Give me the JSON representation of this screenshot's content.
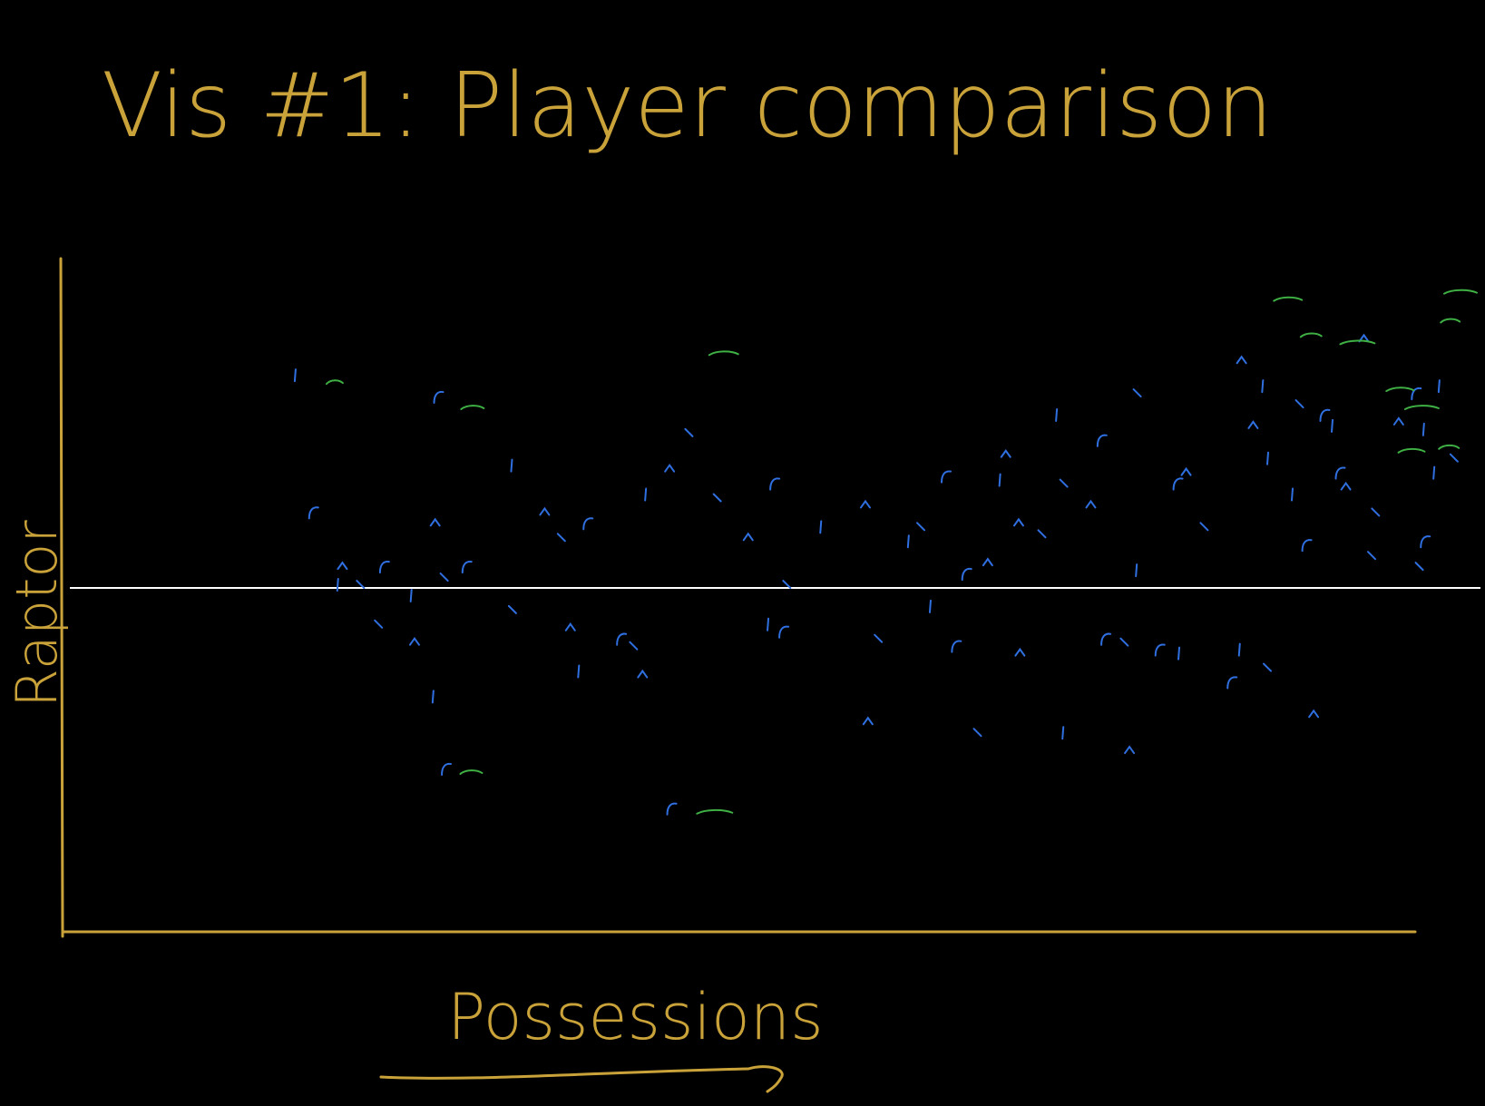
{
  "colors": {
    "background": "#000000",
    "ink": "#c9a23a",
    "baseline": "#ffffff",
    "series_blue": "#2f6fe0",
    "series_green": "#3fb044"
  },
  "chart_data": {
    "type": "scatter",
    "title": "Vis #1: Player comparison",
    "xlabel": "Possessions",
    "ylabel": "Raptor",
    "xlim": [
      0,
      100
    ],
    "ylim": [
      -10,
      10
    ],
    "reference_line_y": 0,
    "arrow_under_xlabel": true,
    "grid": false,
    "legend": "none",
    "series": [
      {
        "color": "blue",
        "points": [
          [
            9.5,
            5.9
          ],
          [
            20.6,
            5.3
          ],
          [
            40.1,
            4.3
          ],
          [
            64.7,
            3.7
          ],
          [
            68.6,
            4.8
          ],
          [
            72.1,
            4.1
          ],
          [
            74.9,
            5.4
          ],
          [
            78.7,
            3.2
          ],
          [
            84.6,
            5.6
          ],
          [
            89.4,
            4.8
          ],
          [
            93.4,
            2.1
          ],
          [
            95.2,
            4.6
          ],
          [
            97.1,
            4.4
          ],
          [
            97.2,
            1.3
          ],
          [
            96.8,
            0.6
          ],
          [
            91.1,
            2.8
          ],
          [
            85.0,
            3.6
          ],
          [
            78.0,
            2.9
          ],
          [
            69.2,
            2.9
          ],
          [
            65.7,
            1.8
          ],
          [
            64.2,
            3.0
          ],
          [
            60.0,
            3.1
          ],
          [
            58.1,
            1.7
          ],
          [
            53.8,
            2.3
          ],
          [
            50.3,
            1.7
          ],
          [
            46.7,
            2.9
          ],
          [
            42.3,
            2.5
          ],
          [
            38.6,
            3.3
          ],
          [
            36.7,
            2.6
          ],
          [
            32.2,
            1.8
          ],
          [
            30.2,
            1.4
          ],
          [
            28.9,
            2.1
          ],
          [
            26.3,
            3.4
          ],
          [
            22.8,
            0.6
          ],
          [
            21.1,
            0.3
          ],
          [
            20.4,
            1.8
          ],
          [
            18.5,
            -0.2
          ],
          [
            16.4,
            0.6
          ],
          [
            14.6,
            0.1
          ],
          [
            13.2,
            0.6
          ],
          [
            12.8,
            0.1
          ],
          [
            10.9,
            2.1
          ],
          [
            16.0,
            -1.0
          ],
          [
            18.8,
            -1.5
          ],
          [
            20.2,
            -3.0
          ],
          [
            21.2,
            -5.0
          ],
          [
            26.4,
            -0.6
          ],
          [
            30.9,
            -1.1
          ],
          [
            31.5,
            -2.3
          ],
          [
            34.8,
            -1.4
          ],
          [
            35.8,
            -1.6
          ],
          [
            36.5,
            -2.4
          ],
          [
            46.2,
            -1.0
          ],
          [
            47.4,
            -1.2
          ],
          [
            54.8,
            -1.4
          ],
          [
            54.0,
            -3.7
          ],
          [
            58.8,
            -0.5
          ],
          [
            60.8,
            -1.6
          ],
          [
            62.5,
            -4.0
          ],
          [
            65.8,
            -1.8
          ],
          [
            69.1,
            -4.0
          ],
          [
            72.4,
            -1.4
          ],
          [
            73.9,
            -1.5
          ],
          [
            74.3,
            -4.5
          ],
          [
            78.1,
            -1.8
          ],
          [
            82.2,
            -2.6
          ],
          [
            85.0,
            -2.2
          ],
          [
            88.6,
            -3.5
          ],
          [
            82.8,
            -1.7
          ],
          [
            38.7,
            -6.1
          ],
          [
            47.7,
            0.1
          ],
          [
            44.7,
            1.4
          ],
          [
            57.1,
            1.3
          ],
          [
            61.6,
            0.4
          ],
          [
            67.5,
            1.5
          ],
          [
            71.3,
            2.3
          ],
          [
            74.8,
            0.5
          ],
          [
            76.6,
            -1.7
          ],
          [
            80.1,
            1.7
          ],
          [
            83.9,
            4.5
          ],
          [
            86.9,
            2.6
          ],
          [
            90.6,
            3.2
          ],
          [
            87.5,
            5.1
          ],
          [
            83.0,
            6.3
          ],
          [
            97.9,
            3.2
          ],
          [
            96.5,
            5.4
          ],
          [
            99.5,
            3.6
          ],
          [
            92.5,
            6.9
          ],
          [
            90.0,
            4.5
          ],
          [
            88.0,
            1.2
          ],
          [
            93.1,
            0.9
          ],
          [
            63.3,
            0.7
          ],
          [
            98.3,
            5.6
          ]
        ]
      },
      {
        "color": "green",
        "points": [
          [
            12.6,
            5.7
          ],
          [
            23.3,
            5.0
          ],
          [
            42.8,
            6.5
          ],
          [
            42.1,
            -6.2
          ],
          [
            23.2,
            -5.1
          ],
          [
            86.6,
            8.0
          ],
          [
            92.0,
            6.8
          ],
          [
            88.4,
            7.0
          ],
          [
            95.3,
            5.5
          ],
          [
            97.0,
            5.0
          ],
          [
            99.1,
            3.9
          ],
          [
            96.2,
            3.8
          ],
          [
            100.0,
            8.2
          ],
          [
            99.2,
            7.4
          ]
        ]
      }
    ]
  }
}
